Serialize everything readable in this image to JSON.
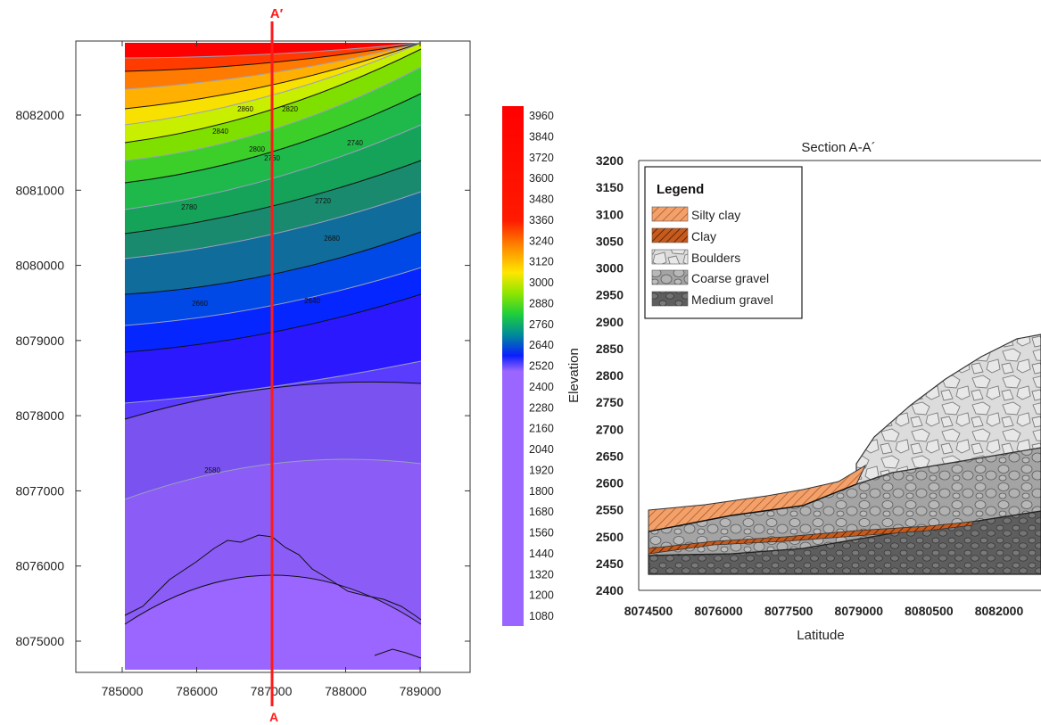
{
  "colors": {
    "contour_ramp": [
      "#9a66ff",
      "#8b5cf6",
      "#7a52f0",
      "#5a3cff",
      "#2b18ff",
      "#0626ff",
      "#0049e6",
      "#106c9a",
      "#1a8a6f",
      "#15a35a",
      "#1fb84a",
      "#3ccf2a",
      "#7fe000",
      "#c8ee00",
      "#f8e000",
      "#ffb000",
      "#ff7a00",
      "#ff3b00",
      "#ff0000"
    ],
    "section_line": "#ff1a1a",
    "silty_clay": "#f3a06b",
    "clay": "#c85a1c",
    "boulders": "#d9d9d9",
    "coarse_gravel": "#a9a9a9",
    "medium_gravel": "#6a6a6a"
  },
  "map": {
    "section_top_label": "A′",
    "section_bottom_label": "A"
  },
  "chart_data": [
    {
      "type": "contour",
      "x_ticks": [
        "785000",
        "786000",
        "787000",
        "788000",
        "789000"
      ],
      "y_ticks": [
        "8075000",
        "8076000",
        "8077000",
        "8078000",
        "8079000",
        "8080000",
        "8081000",
        "8082000"
      ],
      "xlim": [
        784500,
        789600
      ],
      "ylim": [
        8074600,
        8083000
      ],
      "contour_labels": [
        "2860",
        "2840",
        "2820",
        "2800",
        "2780",
        "2760",
        "2740",
        "2720",
        "2680",
        "2660",
        "2640",
        "2580"
      ],
      "section_line_x": 787000,
      "colorbar": {
        "ticks": [
          "3960",
          "3840",
          "3720",
          "3600",
          "3480",
          "3360",
          "3240",
          "3120",
          "3000",
          "2880",
          "2760",
          "2640",
          "2520",
          "2400",
          "2280",
          "2160",
          "2040",
          "1920",
          "1800",
          "1680",
          "1560",
          "1440",
          "1320",
          "1200",
          "1080"
        ]
      }
    },
    {
      "type": "area",
      "title": "Section A-A´",
      "xlabel": "Latitude",
      "ylabel": "Elevation",
      "x_ticks": [
        "8074500",
        "8076000",
        "8077500",
        "8079000",
        "8080500",
        "8082000"
      ],
      "y_ticks": [
        "3200",
        "3150",
        "3100",
        "3050",
        "3000",
        "2950",
        "2900",
        "2850",
        "2800",
        "2750",
        "2700",
        "2650",
        "2600",
        "2550",
        "2500",
        "2450",
        "2400"
      ],
      "xlim": [
        8074500,
        8083000
      ],
      "ylim": [
        2400,
        3200
      ],
      "legend": {
        "title": "Legend",
        "placement": "top-left",
        "items": [
          "Silty clay",
          "Clay",
          "Boulders",
          "Coarse gravel",
          "Medium gravel"
        ]
      }
    }
  ]
}
